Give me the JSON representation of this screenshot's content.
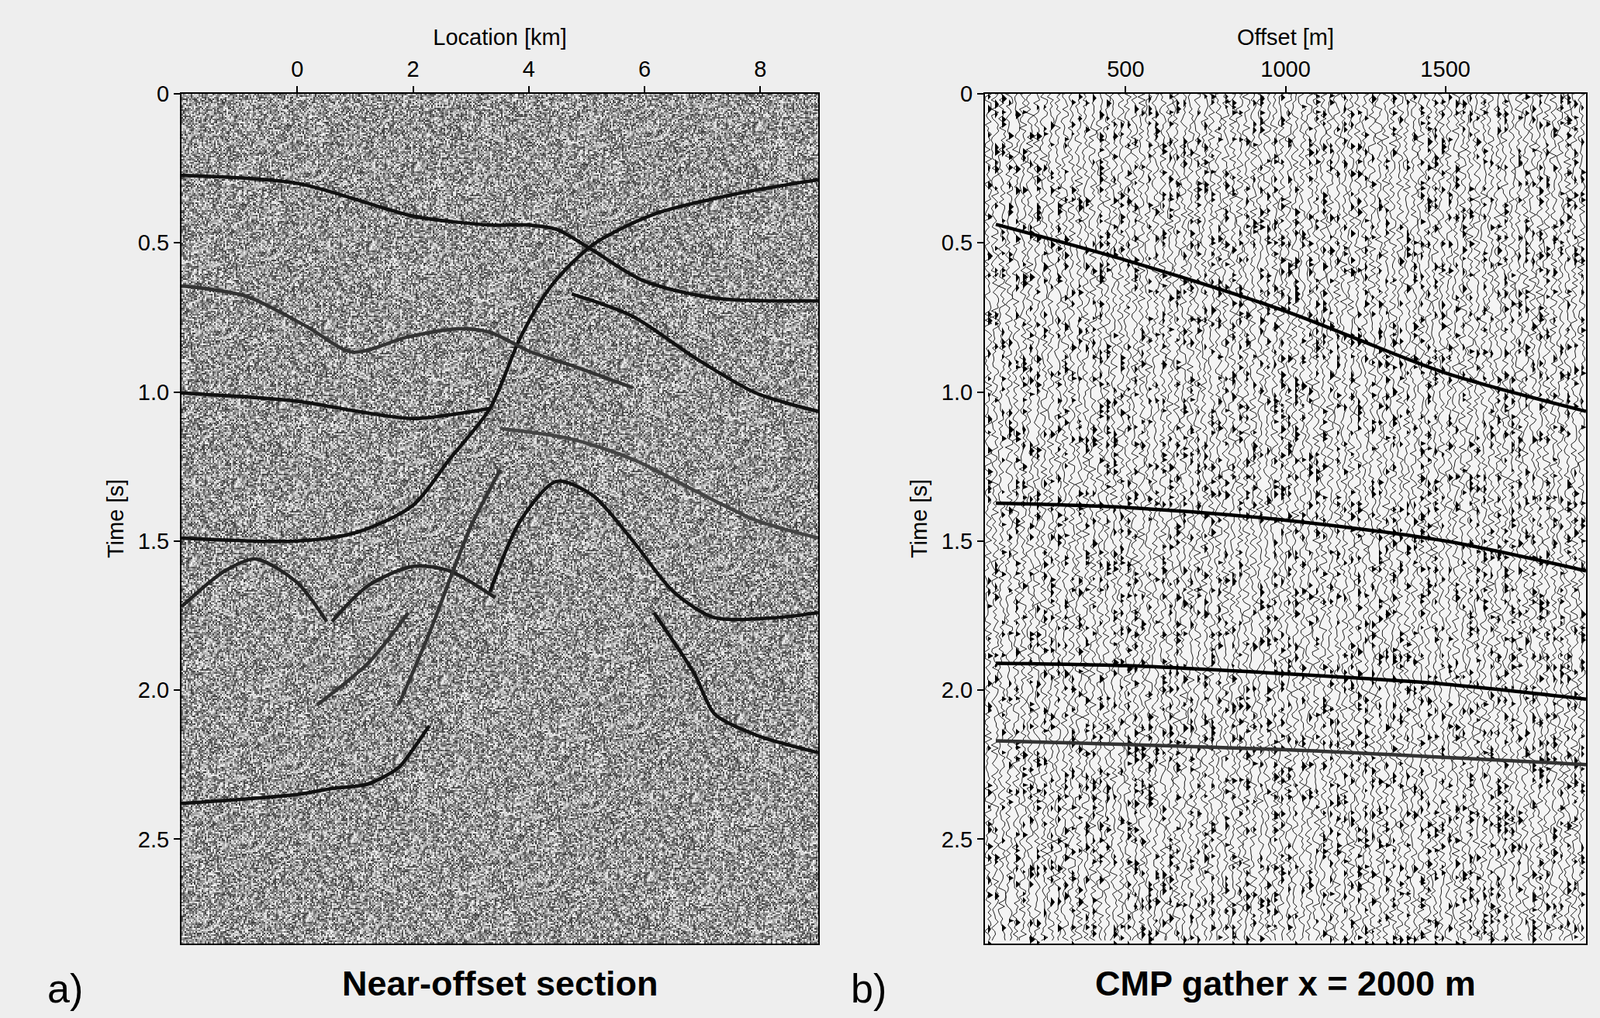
{
  "chart_data": [
    {
      "type": "line",
      "title": "Near-offset section",
      "panel_label": "a)",
      "x_label": "Location [km]",
      "y_label": "Time [s]",
      "xlim": [
        -2.0,
        9.0
      ],
      "xticks": [
        0,
        2,
        4,
        6,
        8
      ],
      "ylim": [
        2.85,
        0
      ],
      "yticks": [
        0,
        0.5,
        {
          "value": 1.0,
          "label": "1.0"
        },
        1.5,
        {
          "value": 2.0,
          "label": "2.0"
        },
        2.5
      ],
      "grid": false,
      "series": [
        {
          "color": "#111111",
          "x": [
            -2.0,
            0,
            2.0,
            3.33,
            4.0,
            4.48,
            5.1,
            5.98,
            7.21,
            9.0
          ],
          "values": [
            0.274,
            0.3,
            0.41,
            0.44,
            0.44,
            0.455,
            0.524,
            0.627,
            0.685,
            0.695
          ]
        },
        {
          "color": "#111111",
          "x": [
            -2.0,
            0,
            1.04,
            2.0,
            2.63,
            3.33,
            3.86,
            4.39,
            5.1,
            6.16,
            7.57,
            9.0
          ],
          "values": [
            1.49,
            1.5,
            1.47,
            1.38,
            1.226,
            1.055,
            0.815,
            0.644,
            0.507,
            0.404,
            0.336,
            0.288
          ]
        },
        {
          "color": "#333333",
          "x": [
            -2.0,
            -0.9,
            0.16,
            0.95,
            1.92,
            2.8,
            3.33,
            4.04,
            4.74,
            5.8
          ],
          "values": [
            0.644,
            0.678,
            0.78,
            0.866,
            0.815,
            0.788,
            0.8,
            0.866,
            0.911,
            0.986
          ]
        },
        {
          "color": "#111111",
          "x": [
            4.74,
            5.8,
            6.86,
            7.92,
            9.0
          ],
          "values": [
            0.671,
            0.747,
            0.884,
            1.003,
            1.065
          ]
        },
        {
          "color": "#111111",
          "x": [
            -2.0,
            0,
            1.04,
            2.0,
            3.33
          ],
          "values": [
            1.003,
            1.031,
            1.065,
            1.089,
            1.055
          ]
        },
        {
          "color": "#444444",
          "x": [
            3.51,
            4.74,
            5.8,
            6.86,
            7.92,
            9.0
          ],
          "values": [
            1.123,
            1.158,
            1.226,
            1.33,
            1.43,
            1.49
          ]
        },
        {
          "color": "#111111",
          "x": [
            3.33,
            3.86,
            4.48,
            5.1,
            5.8,
            6.5,
            7.21,
            8.27,
            9.0
          ],
          "values": [
            1.67,
            1.43,
            1.3,
            1.346,
            1.5,
            1.67,
            1.757,
            1.757,
            1.74
          ]
        },
        {
          "color": "#111111",
          "x": [
            6.16,
            6.86,
            7.21,
            7.92,
            9.0
          ],
          "values": [
            1.74,
            1.945,
            2.08,
            2.15,
            2.21
          ]
        },
        {
          "color": "#222222",
          "x": [
            -2.0,
            -1.25,
            -0.72,
            0,
            0.51
          ],
          "values": [
            1.72,
            1.6,
            1.56,
            1.64,
            1.77
          ]
        },
        {
          "color": "#222222",
          "x": [
            0.6,
            1.22,
            2.0,
            2.63,
            3.42
          ],
          "values": [
            1.77,
            1.65,
            1.585,
            1.6,
            1.69
          ]
        },
        {
          "color": "#333333",
          "x": [
            0.34,
            1.22,
            1.92
          ],
          "values": [
            2.05,
            1.91,
            1.74
          ]
        },
        {
          "color": "#333333",
          "x": [
            1.75,
            2.28,
            2.98,
            3.51
          ],
          "values": [
            2.05,
            1.81,
            1.46,
            1.26
          ]
        },
        {
          "color": "#111111",
          "x": [
            -2.0,
            0,
            0.6,
            1.22,
            1.75,
            1.92,
            2.28
          ],
          "values": [
            2.38,
            2.35,
            2.33,
            2.315,
            2.26,
            2.22,
            2.12
          ]
        }
      ]
    },
    {
      "type": "line",
      "title": "CMP gather x = 2000 m",
      "panel_label": "b)",
      "x_label": "Offset [m]",
      "y_label": "Time [s]",
      "xlim": [
        60,
        1940
      ],
      "xticks": [
        500,
        1000,
        1500
      ],
      "ylim": [
        2.85,
        0
      ],
      "yticks": [
        0,
        0.5,
        {
          "value": 1.0,
          "label": "1.0"
        },
        1.5,
        {
          "value": 2.0,
          "label": "2.0"
        },
        2.5
      ],
      "grid": false,
      "series": [
        {
          "color": "#000000",
          "x": [
            94,
            500,
            1000,
            1497,
            1940
          ],
          "values": [
            0.438,
            0.558,
            0.729,
            0.935,
            1.065
          ]
        },
        {
          "color": "#000000",
          "x": [
            94,
            500,
            1000,
            1500,
            1940
          ],
          "values": [
            1.373,
            1.387,
            1.43,
            1.5,
            1.6
          ]
        },
        {
          "color": "#000000",
          "x": [
            94,
            500,
            1000,
            1500,
            1940
          ],
          "values": [
            1.91,
            1.918,
            1.945,
            1.98,
            2.03
          ]
        },
        {
          "color": "#333333",
          "x": [
            94,
            1000,
            1940
          ],
          "values": [
            2.17,
            2.2,
            2.25
          ]
        }
      ]
    }
  ]
}
